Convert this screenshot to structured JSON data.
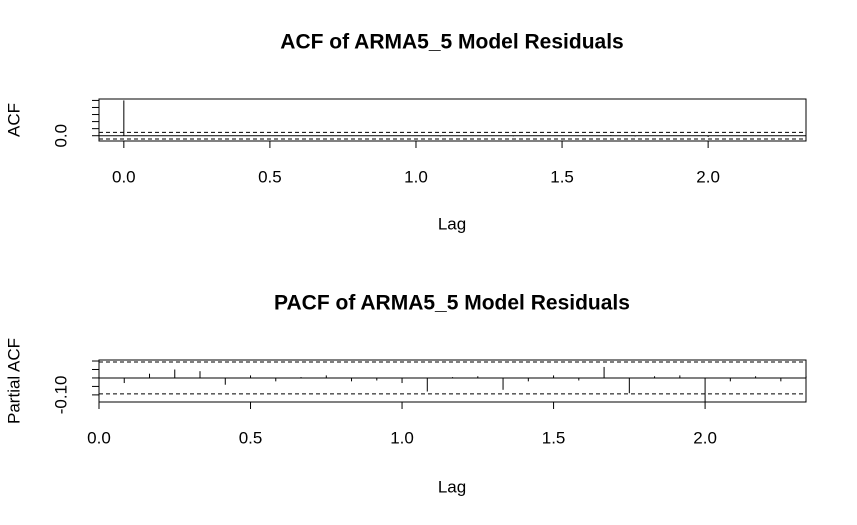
{
  "chart_data": [
    {
      "type": "acf",
      "title": "ACF of ARMA5_5 Model Residuals",
      "xlabel": "Lag",
      "ylabel": "ACF",
      "x": [
        0,
        0.0833,
        0.1667,
        0.25,
        0.3333,
        0.4167,
        0.5,
        0.5833,
        0.6667,
        0.75,
        0.8333,
        0.9167,
        1,
        1.0833,
        1.1667,
        1.25,
        1.3333,
        1.4167,
        1.5,
        1.5833,
        1.6667,
        1.75,
        1.8333,
        1.9167,
        2,
        2.0833,
        2.1667,
        2.25,
        2.3333
      ],
      "values": [
        1,
        -0.005,
        0.005,
        0.01,
        0.008,
        -0.01,
        0.004,
        -0.005,
        0.002,
        0.004,
        -0.005,
        -0.004,
        -0.008,
        -0.02,
        0.002,
        0.003,
        -0.018,
        -0.005,
        0.004,
        -0.004,
        0.016,
        -0.022,
        0.003,
        0.004,
        -0.035,
        -0.005,
        0.003,
        -0.005,
        0.003
      ],
      "conf": [
        0.094,
        -0.094
      ],
      "xlim": [
        -0.085,
        2.335
      ],
      "ylim": [
        -0.15,
        1.04
      ],
      "xticks": [
        {
          "value": 0,
          "label": "0.0"
        },
        {
          "value": 0.5,
          "label": "0.5"
        },
        {
          "value": 1,
          "label": "1.0"
        },
        {
          "value": 1.5,
          "label": "1.5"
        },
        {
          "value": 2,
          "label": "2.0"
        }
      ],
      "yticks": [
        {
          "value": 0,
          "label": "0.0"
        },
        0.2,
        0.4,
        0.6,
        0.8,
        1
      ],
      "color": "#000000"
    },
    {
      "type": "acf",
      "title": "PACF of ARMA5_5 Model Residuals",
      "xlabel": "Lag",
      "ylabel": "Partial ACF",
      "x": [
        0.0833,
        0.1667,
        0.25,
        0.3333,
        0.4167,
        0.5,
        0.5833,
        0.6667,
        0.75,
        0.8333,
        0.9167,
        1,
        1.0833,
        1.1667,
        1.25,
        1.3333,
        1.4167,
        1.5,
        1.5833,
        1.6667,
        1.75,
        1.8333,
        1.9167,
        2,
        2.0833,
        2.1667,
        2.25,
        2.3333
      ],
      "values": [
        -0.03,
        0.025,
        0.05,
        0.04,
        -0.04,
        0.015,
        -0.02,
        0.005,
        0.015,
        -0.02,
        -0.015,
        -0.03,
        -0.08,
        0.005,
        0.01,
        -0.07,
        -0.02,
        0.015,
        -0.015,
        0.065,
        -0.09,
        0.01,
        0.015,
        -0.14,
        -0.02,
        0.01,
        -0.02,
        0.01
      ],
      "conf": [
        0.094,
        -0.094
      ],
      "xlim": [
        0,
        2.333
      ],
      "ylim": [
        -0.142,
        0.106
      ],
      "xticks": [
        {
          "value": 0,
          "label": "0.0"
        },
        {
          "value": 0.5,
          "label": "0.5"
        },
        {
          "value": 1,
          "label": "1.0"
        },
        {
          "value": 1.5,
          "label": "1.5"
        },
        {
          "value": 2,
          "label": "2.0"
        }
      ],
      "yticks": [
        {
          "value": -0.1,
          "label": "-0.10"
        },
        -0.05,
        0,
        0.05,
        0.1
      ],
      "color": "#000000"
    }
  ]
}
